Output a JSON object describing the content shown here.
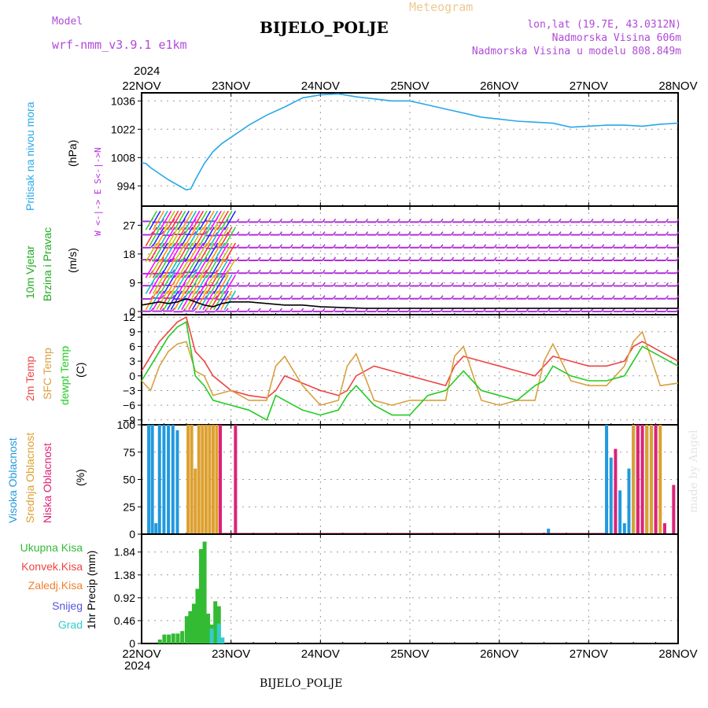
{
  "header": {
    "model_label": "Model",
    "model_name": "wrf-nmm_v3.9.1  e1km",
    "title": "BIJELO_POLJE",
    "meteogram": "Meteogram",
    "lonlat": "lon,lat (19.7E, 43.0312N)",
    "altitude": "Nadmorska Visina 606m",
    "model_altitude": "Nadmorska Visina u modelu 808.849m",
    "footer_title": "BIJELO_POLJE",
    "credit": "made by Angel",
    "year_top": "2024",
    "year_bottom": "2024"
  },
  "colors": {
    "pressure": "#2aa8e8",
    "temp2m": "#ee4444",
    "sfc": "#d8a040",
    "dewpt": "#22cc22",
    "high_cloud": "#2299dd",
    "mid_cloud": "#dda030",
    "low_cloud": "#dd2277",
    "total_precip": "#33bb33",
    "conv_precip": "#ee4444",
    "frozen": "#f08030",
    "snow": "#5555dd",
    "graupel": "#33cccc",
    "wind_barb": "#b030d8",
    "purple_text": "#b04ad8",
    "orange_text": "#f0c890"
  },
  "chart_data": [
    {
      "type": "line",
      "title": "Pritisak na nivou mora",
      "ylabel": "(hPa)",
      "x_unit": "days since 22NOV 00UTC",
      "xticks": [
        "22NOV",
        "23NOV",
        "24NOV",
        "25NOV",
        "26NOV",
        "27NOV",
        "28NOV"
      ],
      "yticks": [
        994,
        1008,
        1022,
        1036
      ],
      "ylim": [
        984,
        1040
      ],
      "series": [
        {
          "name": "Pritisak na nivou mora",
          "x": [
            0,
            0.05,
            0.1,
            0.2,
            0.3,
            0.4,
            0.5,
            0.55,
            0.6,
            0.7,
            0.8,
            0.9,
            1.0,
            1.2,
            1.4,
            1.6,
            1.8,
            2.0,
            2.2,
            2.4,
            2.6,
            2.8,
            3.0,
            3.2,
            3.4,
            3.6,
            3.8,
            4.0,
            4.2,
            4.4,
            4.6,
            4.8,
            5.0,
            5.2,
            5.4,
            5.6,
            5.8,
            6.0
          ],
          "y": [
            1005.5,
            1005,
            1003,
            1000,
            997,
            994.5,
            992,
            992.5,
            997,
            1005,
            1011,
            1015,
            1018,
            1024,
            1029,
            1033,
            1037.5,
            1039,
            1039.5,
            1038,
            1037,
            1036,
            1036,
            1034,
            1032,
            1030,
            1028,
            1027,
            1026,
            1025.5,
            1025,
            1023,
            1023.5,
            1024,
            1024,
            1023.5,
            1024.5,
            1025
          ]
        }
      ]
    },
    {
      "type": "line",
      "title": "10m Vjetar Brzina i Pravac",
      "ylabel": "(m/s)",
      "yticks": [
        0,
        9,
        18,
        27
      ],
      "ylim": [
        -1,
        33
      ],
      "compass": "W <-|-> E  S<-|->N",
      "series": [
        {
          "name": "10m Vjetar Brzina",
          "x": [
            0,
            0.1,
            0.2,
            0.3,
            0.4,
            0.5,
            0.6,
            0.7,
            0.8,
            0.9,
            1.0,
            1.2,
            1.4,
            1.6,
            1.8,
            2.0,
            2.5,
            3.0,
            3.5,
            4.0,
            4.5,
            5.0,
            5.5,
            6.0
          ],
          "y": [
            2,
            2.5,
            3,
            2.5,
            3,
            4,
            3,
            2,
            1.5,
            2.5,
            3,
            3,
            2.5,
            2,
            2,
            1.5,
            1,
            1,
            1,
            1,
            1,
            1,
            1,
            1
          ]
        }
      ]
    },
    {
      "type": "line",
      "title": "2m Temp / SFC Temp / dewpt Temp",
      "ylabel": "(C)",
      "yticks": [
        -9,
        -6,
        -3,
        0,
        3,
        6,
        9,
        12
      ],
      "ylim": [
        -10,
        12.5
      ],
      "series": [
        {
          "name": "2m Temp",
          "x": [
            0,
            0.1,
            0.2,
            0.3,
            0.4,
            0.5,
            0.6,
            0.7,
            0.8,
            1.0,
            1.2,
            1.4,
            1.5,
            1.6,
            1.8,
            2.0,
            2.2,
            2.3,
            2.4,
            2.6,
            2.8,
            3.0,
            3.2,
            3.4,
            3.5,
            3.6,
            3.8,
            4.0,
            4.2,
            4.4,
            4.5,
            4.6,
            4.8,
            5.0,
            5.2,
            5.4,
            5.5,
            5.6,
            5.8,
            6.0
          ],
          "y": [
            1,
            4,
            7,
            9,
            11,
            12,
            5,
            3,
            0,
            -3,
            -4,
            -4.5,
            -3,
            0,
            -1.5,
            -3,
            -4,
            -3,
            0,
            2,
            1,
            0,
            -1,
            -2,
            2,
            4,
            3,
            2,
            1,
            0,
            2,
            4,
            3,
            2,
            2,
            3,
            6,
            7,
            5,
            3
          ]
        },
        {
          "name": "SFC Temp",
          "x": [
            0,
            0.1,
            0.2,
            0.3,
            0.4,
            0.5,
            0.6,
            0.7,
            0.8,
            1.0,
            1.2,
            1.4,
            1.5,
            1.6,
            1.8,
            2.0,
            2.2,
            2.3,
            2.4,
            2.6,
            2.8,
            3.0,
            3.2,
            3.4,
            3.5,
            3.6,
            3.8,
            4.0,
            4.2,
            4.4,
            4.5,
            4.6,
            4.8,
            5.0,
            5.2,
            5.4,
            5.5,
            5.6,
            5.8,
            6.0
          ],
          "y": [
            -1,
            -3,
            2,
            5,
            6.5,
            7,
            1,
            0,
            -4,
            -3,
            -5,
            -5,
            2,
            4,
            -2,
            -6,
            -5,
            2,
            4.5,
            -5,
            -6,
            -5,
            -5,
            -5,
            4,
            6,
            -5,
            -6,
            -5,
            -5,
            3,
            6.5,
            -1,
            -2,
            -2,
            2,
            7,
            9,
            -2,
            -1.5
          ]
        },
        {
          "name": "dewpt Temp",
          "x": [
            0,
            0.1,
            0.2,
            0.3,
            0.4,
            0.5,
            0.6,
            0.7,
            0.8,
            1.0,
            1.2,
            1.4,
            1.5,
            1.6,
            1.8,
            2.0,
            2.2,
            2.3,
            2.4,
            2.6,
            2.8,
            3.0,
            3.2,
            3.4,
            3.5,
            3.6,
            3.8,
            4.0,
            4.2,
            4.4,
            4.5,
            4.6,
            4.8,
            5.0,
            5.2,
            5.4,
            5.5,
            5.6,
            5.8,
            6.0
          ],
          "y": [
            -1,
            2,
            5,
            8,
            10,
            11,
            0,
            -2,
            -5,
            -6,
            -7,
            -9,
            -4,
            -5,
            -7,
            -8,
            -7,
            -4,
            -2,
            -6,
            -8,
            -8,
            -4,
            -3,
            -1,
            1,
            -3,
            -4,
            -5,
            -2,
            -1,
            2,
            0,
            -1,
            -1,
            0,
            3,
            6,
            4,
            2
          ]
        }
      ]
    },
    {
      "type": "bar",
      "title": "Visoka / Srednja / Niska Oblacnost",
      "ylabel": "(%)",
      "yticks": [
        0,
        25,
        50,
        75,
        100
      ],
      "ylim": [
        0,
        100
      ],
      "series": [
        {
          "name": "Visoka Oblacnost",
          "x": [
            0.08,
            0.12,
            0.16,
            0.2,
            0.25,
            0.3,
            0.35,
            0.4,
            5.2,
            5.25,
            5.3,
            5.35,
            5.4,
            5.45,
            5.5,
            5.55,
            5.6,
            5.65,
            5.7,
            5.75,
            4.55
          ],
          "y": [
            100,
            100,
            10,
            100,
            100,
            100,
            100,
            95,
            100,
            70,
            40,
            40,
            10,
            60,
            100,
            100,
            95,
            100,
            100,
            100,
            5
          ]
        },
        {
          "name": "Srednja Oblacnost",
          "x": [
            0.52,
            0.56,
            0.6,
            0.64,
            0.68,
            0.72,
            0.76,
            0.8,
            0.84,
            5.5,
            5.55,
            5.6,
            5.65,
            5.7,
            5.75,
            5.8
          ],
          "y": [
            100,
            100,
            60,
            100,
            100,
            100,
            100,
            100,
            100,
            100,
            100,
            100,
            100,
            100,
            100,
            100
          ]
        },
        {
          "name": "Niska Oblacnost",
          "x": [
            0.88,
            1.05,
            5.3,
            5.55,
            5.6,
            5.75,
            5.85,
            5.95
          ],
          "y": [
            100,
            100,
            78,
            100,
            100,
            100,
            10,
            45
          ]
        }
      ]
    },
    {
      "type": "bar",
      "title": "1hr Precip",
      "ylabel": "1hr Precip (mm)",
      "yticks": [
        0,
        0.46,
        0.92,
        1.38,
        1.84
      ],
      "ylim": [
        0,
        2.2
      ],
      "series": [
        {
          "name": "Ukupna Kisa",
          "x": [
            0.2,
            0.25,
            0.3,
            0.35,
            0.4,
            0.45,
            0.5,
            0.54,
            0.58,
            0.62,
            0.66,
            0.7,
            0.74,
            0.78,
            0.82,
            0.86
          ],
          "y": [
            0.08,
            0.18,
            0.18,
            0.2,
            0.2,
            0.25,
            0.55,
            0.65,
            0.8,
            1.1,
            1.9,
            2.05,
            0.6,
            0.38,
            0.85,
            0.75
          ]
        },
        {
          "name": "Graupel",
          "x": [
            0.78,
            0.86,
            0.9
          ],
          "y": [
            0.3,
            0.4,
            0.12
          ]
        }
      ]
    }
  ],
  "legend_precip": {
    "total": "Ukupna  Kisa",
    "conv": "Konvek.Kisa",
    "frozen": "Zaledj.Kisa",
    "snow": "Snijeg",
    "graupel": "Grad"
  },
  "panel_labels": {
    "p1_title": "Pritisak na nivou mora",
    "p1_unit": "(hPa)",
    "p2_title1": "10m Vjetar",
    "p2_title2": "Brzina i Pravac",
    "p2_unit": "(m/s)",
    "p3_t1": "2m Temp",
    "p3_t2": "SFC Temp",
    "p3_t3": "dewpt Temp",
    "p3_unit": "(C)",
    "p4_t1": "Visoka Oblacnost",
    "p4_t2": "Srednja Oblacnost",
    "p4_t3": "Niska Oblacnost",
    "p4_unit": "(%)",
    "p5_unit": "1hr Precip (mm)"
  }
}
